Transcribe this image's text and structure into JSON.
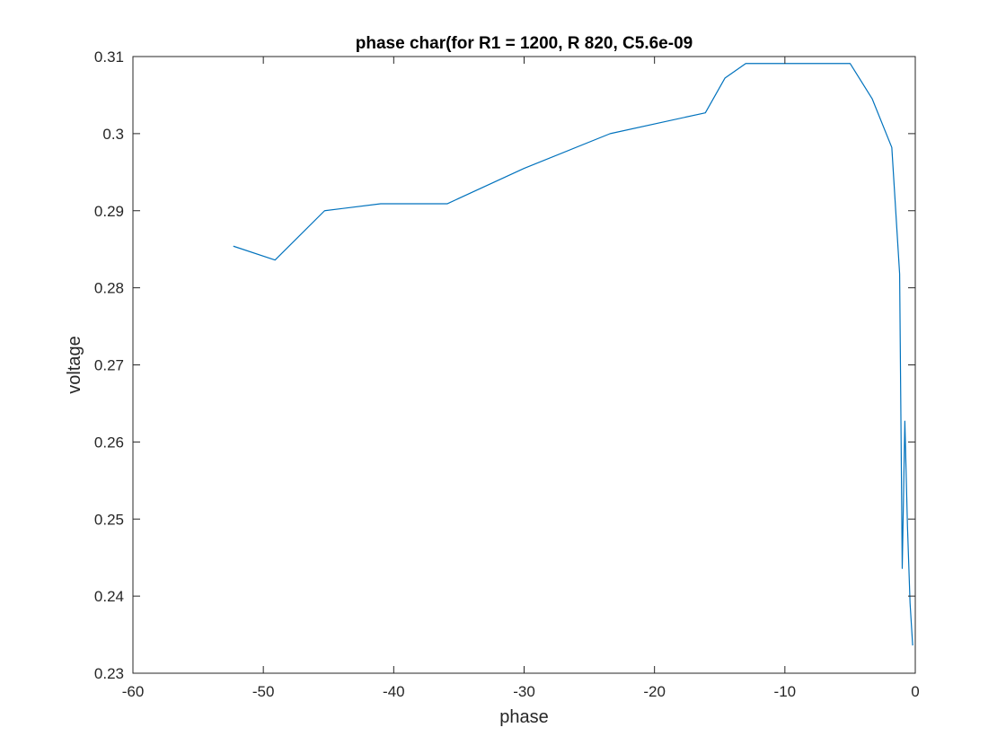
{
  "chart_data": {
    "type": "line",
    "title": "phase char(for R1 = 1200, R 820, C5.6e-09",
    "xlabel": "phase",
    "ylabel": "voltage",
    "xlim": [
      -60,
      0
    ],
    "ylim": [
      0.23,
      0.31
    ],
    "xticks": [
      -60,
      -50,
      -40,
      -30,
      -20,
      -10,
      0
    ],
    "xtick_labels": [
      "-60",
      "-50",
      "-40",
      "-30",
      "-20",
      "-10",
      "0"
    ],
    "yticks": [
      0.23,
      0.24,
      0.25,
      0.26,
      0.27,
      0.28,
      0.29,
      0.3,
      0.31
    ],
    "ytick_labels": [
      "0.23",
      "0.24",
      "0.25",
      "0.26",
      "0.27",
      "0.28",
      "0.29",
      "0.3",
      "0.31"
    ],
    "grid": false,
    "legend": "none",
    "series": [
      {
        "color": "#0072BD",
        "x": [
          -52.3,
          -49.1,
          -45.3,
          -41.0,
          -35.9,
          -30.0,
          -23.4,
          -16.1,
          -14.6,
          -13.0,
          -11.0,
          -9.0,
          -7.0,
          -5.0,
          -3.3,
          -1.8,
          -1.2,
          -1.0,
          -0.8,
          -0.6,
          -0.4,
          -0.2
        ],
        "y": [
          0.2854,
          0.2836,
          0.29,
          0.2909,
          0.2909,
          0.2955,
          0.3,
          0.3027,
          0.3072,
          0.3091,
          0.3091,
          0.3091,
          0.3091,
          0.3091,
          0.3045,
          0.2982,
          0.2818,
          0.2436,
          0.2627,
          0.2491,
          0.2391,
          0.2336
        ]
      }
    ]
  }
}
